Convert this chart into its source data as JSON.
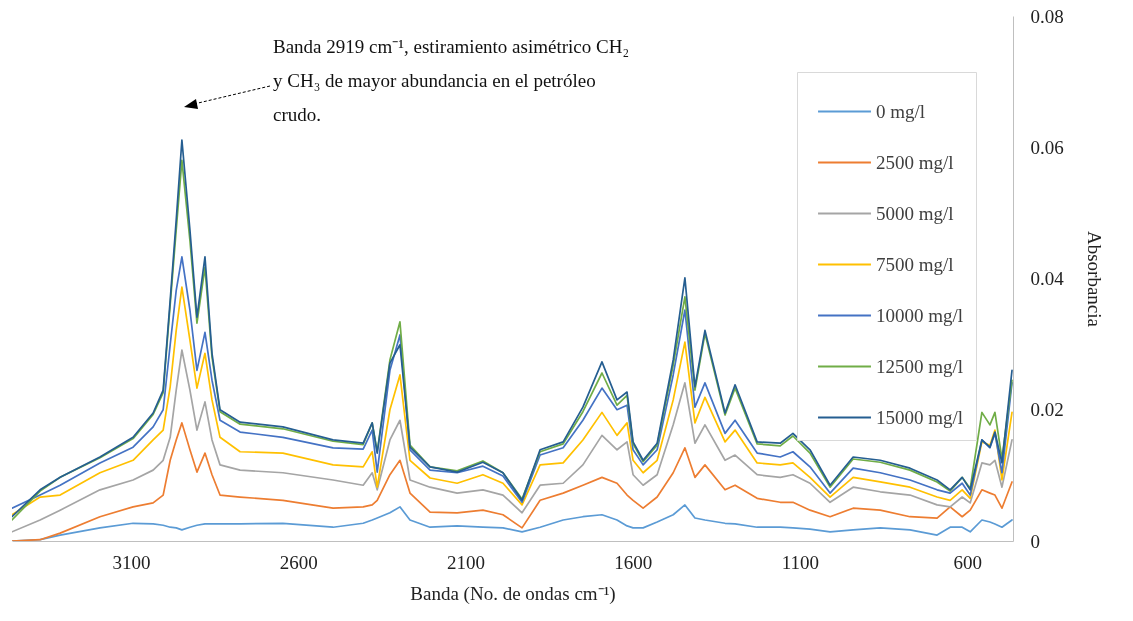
{
  "chart_data": {
    "type": "line",
    "xlabel": "Banda (No. de ondas cm⁻¹)",
    "ylabel": "Absorbancia",
    "annotations": [
      "Banda 2919 cm⁻¹, estiramiento asimétrico CH₂ y CH₃ de mayor abundancia en el petróleo crudo."
    ],
    "x": [
      3456,
      3372,
      3312,
      3193,
      3094,
      3034,
      3004,
      2983,
      2965,
      2948,
      2924,
      2903,
      2879,
      2858,
      2834,
      2774,
      2646,
      2496,
      2406,
      2379,
      2364,
      2326,
      2296,
      2266,
      2206,
      2125,
      2048,
      1988,
      1931,
      1877,
      1808,
      1749,
      1692,
      1647,
      1617,
      1599,
      1569,
      1527,
      1479,
      1444,
      1414,
      1384,
      1324,
      1294,
      1228,
      1159,
      1121,
      1070,
      1010,
      941,
      860,
      771,
      690,
      651,
      615,
      591,
      556,
      532,
      517,
      496,
      466
    ],
    "xlim": [
      3456,
      463
    ],
    "xticks": [
      3100,
      2600,
      2100,
      1600,
      1100,
      600
    ],
    "ylim": [
      0,
      0.08
    ],
    "yticks": [
      0,
      0.02,
      0.04,
      0.06,
      0.08
    ],
    "legend": "top right",
    "grid": false,
    "line_style": "solid",
    "marker": "none",
    "series": [
      {
        "name": "0 mg/l",
        "color": "#5b9bd5",
        "values": [
          0.0,
          0.0002,
          0.0009,
          0.002,
          0.0027,
          0.0026,
          0.0024,
          0.0021,
          0.002,
          0.0017,
          0.0021,
          0.0024,
          0.0026,
          0.0026,
          0.0026,
          0.0026,
          0.0027,
          0.0021,
          0.0027,
          0.0032,
          0.0035,
          0.0043,
          0.0052,
          0.0032,
          0.0021,
          0.0023,
          0.0021,
          0.002,
          0.0014,
          0.0021,
          0.0032,
          0.0037,
          0.004,
          0.0032,
          0.0023,
          0.002,
          0.002,
          0.0029,
          0.004,
          0.0055,
          0.0035,
          0.0032,
          0.0027,
          0.0026,
          0.0021,
          0.0021,
          0.002,
          0.0018,
          0.0014,
          0.0017,
          0.002,
          0.0017,
          0.0009,
          0.0021,
          0.0021,
          0.0014,
          0.0032,
          0.0029,
          0.0026,
          0.0021,
          0.0032
        ]
      },
      {
        "name": "2500 mg/l",
        "color": "#ed7d31",
        "values": [
          0.0,
          0.0002,
          0.0012,
          0.0037,
          0.0052,
          0.0058,
          0.007,
          0.0123,
          0.0154,
          0.018,
          0.0139,
          0.0105,
          0.0134,
          0.0101,
          0.007,
          0.0067,
          0.0062,
          0.005,
          0.0052,
          0.0055,
          0.0062,
          0.0101,
          0.0123,
          0.0073,
          0.0044,
          0.0043,
          0.0047,
          0.004,
          0.002,
          0.0062,
          0.0073,
          0.0085,
          0.0097,
          0.0088,
          0.007,
          0.0062,
          0.005,
          0.0067,
          0.0104,
          0.0142,
          0.0097,
          0.0116,
          0.0078,
          0.0085,
          0.0065,
          0.0059,
          0.0059,
          0.0047,
          0.0037,
          0.005,
          0.0047,
          0.0037,
          0.0035,
          0.0052,
          0.0037,
          0.0047,
          0.0078,
          0.0073,
          0.007,
          0.005,
          0.009
        ]
      },
      {
        "name": "5000 mg/l",
        "color": "#a5a5a5",
        "values": [
          0.0014,
          0.0032,
          0.0047,
          0.0078,
          0.0093,
          0.0108,
          0.0123,
          0.0158,
          0.023,
          0.0291,
          0.023,
          0.0169,
          0.0212,
          0.0154,
          0.0116,
          0.0108,
          0.0104,
          0.0093,
          0.0085,
          0.0104,
          0.0078,
          0.0154,
          0.0184,
          0.0093,
          0.0082,
          0.0073,
          0.0078,
          0.007,
          0.0043,
          0.0085,
          0.0088,
          0.0116,
          0.0161,
          0.0139,
          0.0151,
          0.0101,
          0.0085,
          0.0101,
          0.0177,
          0.0241,
          0.0149,
          0.0177,
          0.0123,
          0.0131,
          0.0101,
          0.0097,
          0.0101,
          0.0088,
          0.0059,
          0.0082,
          0.0075,
          0.007,
          0.0055,
          0.0052,
          0.0067,
          0.0058,
          0.0119,
          0.0116,
          0.0123,
          0.0082,
          0.0154
        ]
      },
      {
        "name": "7500 mg/l",
        "color": "#ffc000",
        "values": [
          0.004,
          0.0067,
          0.007,
          0.0104,
          0.0123,
          0.0154,
          0.0169,
          0.0235,
          0.0321,
          0.0387,
          0.0306,
          0.0233,
          0.0286,
          0.0215,
          0.0158,
          0.0136,
          0.0134,
          0.0116,
          0.0113,
          0.0136,
          0.0082,
          0.02,
          0.0253,
          0.0123,
          0.0096,
          0.0088,
          0.0101,
          0.0088,
          0.0055,
          0.0116,
          0.0119,
          0.0154,
          0.0196,
          0.0161,
          0.018,
          0.0123,
          0.0104,
          0.0123,
          0.0215,
          0.0303,
          0.018,
          0.0219,
          0.0151,
          0.0169,
          0.0119,
          0.0116,
          0.0119,
          0.0097,
          0.0067,
          0.0097,
          0.009,
          0.0082,
          0.0067,
          0.0062,
          0.0078,
          0.0065,
          0.0151,
          0.0146,
          0.0169,
          0.0093,
          0.0196
        ]
      },
      {
        "name": "10000 mg/l",
        "color": "#4472c4",
        "values": [
          0.005,
          0.007,
          0.0085,
          0.0119,
          0.0143,
          0.0174,
          0.02,
          0.0299,
          0.0382,
          0.0433,
          0.0352,
          0.026,
          0.0318,
          0.0245,
          0.0184,
          0.0166,
          0.0158,
          0.0142,
          0.014,
          0.0169,
          0.0105,
          0.026,
          0.0314,
          0.0139,
          0.0108,
          0.0104,
          0.0114,
          0.0099,
          0.0059,
          0.0131,
          0.0142,
          0.0184,
          0.0233,
          0.02,
          0.0207,
          0.0139,
          0.0116,
          0.0139,
          0.0253,
          0.0352,
          0.0204,
          0.0241,
          0.0164,
          0.0184,
          0.0134,
          0.0128,
          0.0136,
          0.0113,
          0.0073,
          0.0111,
          0.0104,
          0.0093,
          0.0078,
          0.0073,
          0.0088,
          0.007,
          0.0154,
          0.0142,
          0.0164,
          0.0104,
          0.0241
        ]
      },
      {
        "name": "12500 mg/l",
        "color": "#70ad47",
        "values": [
          0.0032,
          0.0076,
          0.0097,
          0.0127,
          0.0156,
          0.0193,
          0.0226,
          0.036,
          0.0474,
          0.058,
          0.0458,
          0.0332,
          0.0417,
          0.028,
          0.0197,
          0.0178,
          0.0171,
          0.0152,
          0.0147,
          0.018,
          0.0136,
          0.0276,
          0.0334,
          0.0146,
          0.0113,
          0.0107,
          0.0122,
          0.0104,
          0.0064,
          0.0136,
          0.0148,
          0.0197,
          0.0256,
          0.0207,
          0.0222,
          0.0148,
          0.0121,
          0.0146,
          0.0268,
          0.0372,
          0.023,
          0.0316,
          0.0192,
          0.0233,
          0.0148,
          0.0145,
          0.016,
          0.0134,
          0.0082,
          0.0125,
          0.012,
          0.0108,
          0.009,
          0.0076,
          0.0097,
          0.008,
          0.0196,
          0.0177,
          0.0196,
          0.0125,
          0.0245
        ]
      },
      {
        "name": "15000 mg/l",
        "color": "#255e91",
        "values": [
          0.0037,
          0.0078,
          0.0097,
          0.0128,
          0.0158,
          0.0195,
          0.023,
          0.0367,
          0.0489,
          0.0611,
          0.0474,
          0.0341,
          0.0433,
          0.0286,
          0.02,
          0.0181,
          0.0174,
          0.0154,
          0.0149,
          0.018,
          0.0134,
          0.0271,
          0.0299,
          0.0143,
          0.0113,
          0.0105,
          0.012,
          0.0104,
          0.0062,
          0.0139,
          0.0151,
          0.0204,
          0.0273,
          0.0215,
          0.0227,
          0.0151,
          0.0123,
          0.0149,
          0.0276,
          0.0401,
          0.0235,
          0.0321,
          0.0195,
          0.0238,
          0.0151,
          0.0149,
          0.0164,
          0.0139,
          0.0085,
          0.0128,
          0.0123,
          0.0111,
          0.0093,
          0.0078,
          0.0097,
          0.0078,
          0.0154,
          0.0143,
          0.0166,
          0.0119,
          0.026
        ]
      }
    ]
  }
}
